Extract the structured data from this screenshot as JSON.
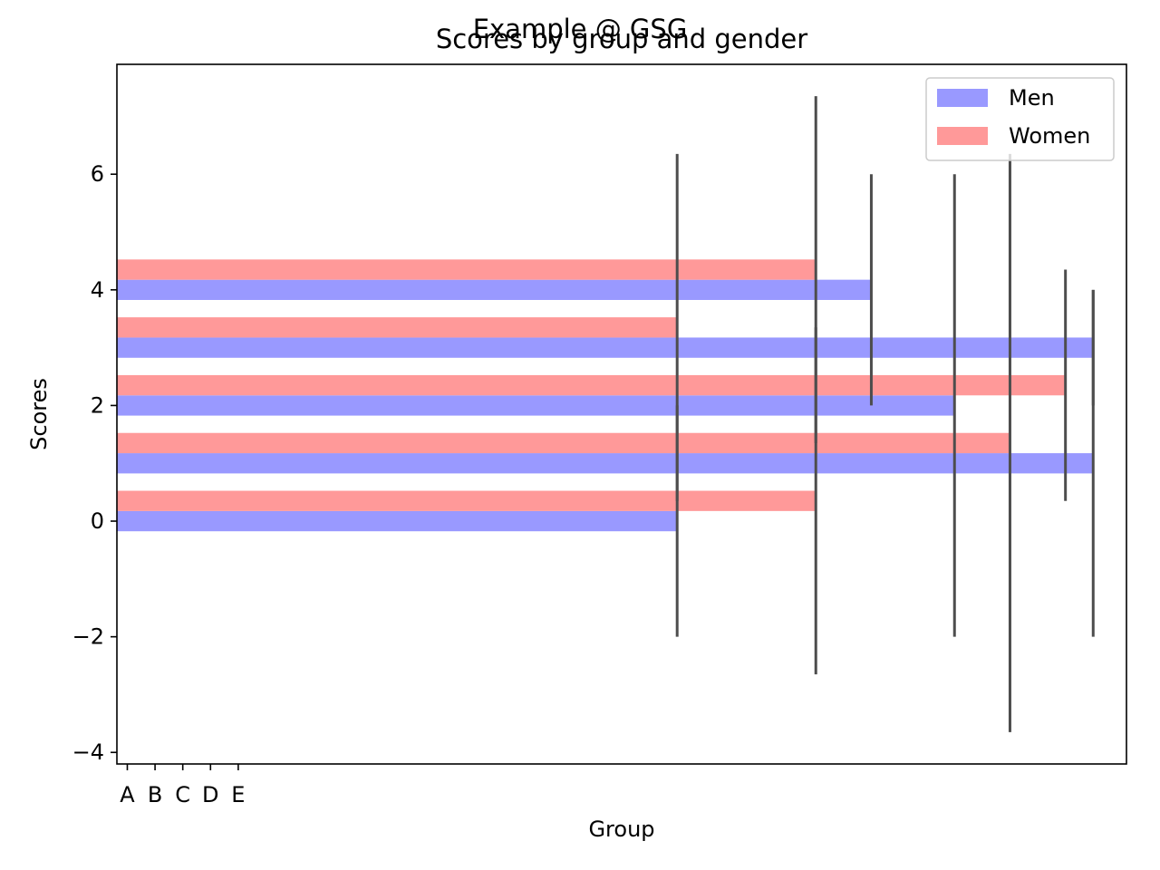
{
  "chart_data": {
    "type": "bar",
    "orientation": "horizontal",
    "suptitle": "Example @ GSG",
    "title": "Scores by group and gender",
    "xlabel": "Group",
    "ylabel": "Scores",
    "xticks": [
      "A",
      "B",
      "C",
      "D",
      "E"
    ],
    "yticks": [
      -4,
      -2,
      0,
      2,
      4,
      6
    ],
    "ytick_labels": [
      "−4",
      "−2",
      "0",
      "2",
      "4",
      "6"
    ],
    "xlim": [
      -0.2,
      36.2
    ],
    "ylim": [
      -4.2,
      7.9
    ],
    "grid": false,
    "legend_position": "top-right",
    "series": [
      {
        "name": "Men",
        "color": "#9999ff",
        "positions": [
          0,
          1,
          2,
          3,
          4
        ],
        "values": [
          20,
          35,
          30,
          35,
          27
        ],
        "errors": [
          2,
          3,
          4,
          1,
          2
        ]
      },
      {
        "name": "Women",
        "color": "#ff9999",
        "positions": [
          0.35,
          1.35,
          2.35,
          3.35,
          4.35
        ],
        "values": [
          25,
          32,
          34,
          20,
          25
        ],
        "errors": [
          3,
          5,
          2,
          3,
          3
        ]
      }
    ],
    "error_color": "#4d4d4d"
  }
}
